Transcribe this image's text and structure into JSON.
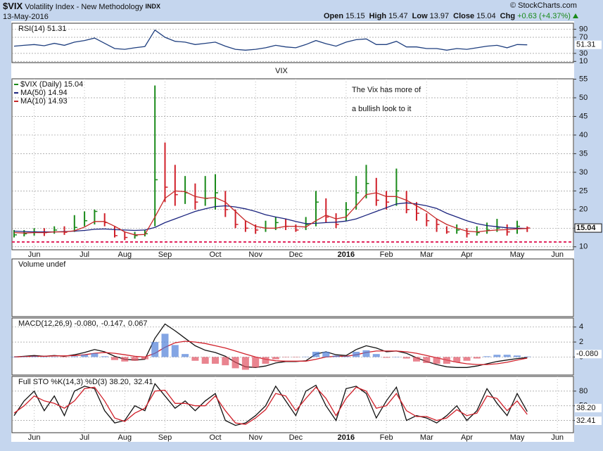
{
  "header": {
    "symbol": "$VIX",
    "name": "Volatility Index - New Methodology",
    "exchange": "INDX",
    "date": "13-May-2016",
    "quote": [
      {
        "label": "Open",
        "value": 15.15
      },
      {
        "label": "High",
        "value": 15.47
      },
      {
        "label": "Low",
        "value": 13.97
      },
      {
        "label": "Close",
        "value": 15.04
      },
      {
        "label": "Chg",
        "value": "+0.63 (+4.37%)"
      }
    ],
    "credit": "© StockCharts.com"
  },
  "chart_data": [
    {
      "type": "line",
      "legend": "inline",
      "last_value_label": true,
      "ylim": [
        7,
        105
      ],
      "yticks": [
        10,
        30,
        70,
        90
      ],
      "grid": true,
      "series": [
        {
          "name": "RSI(14) 51.31",
          "color": "#1f3f7f",
          "values": [
            48,
            50,
            52,
            49,
            55,
            50,
            58,
            62,
            68,
            55,
            42,
            40,
            44,
            47,
            88,
            70,
            60,
            58,
            52,
            55,
            58,
            48,
            40,
            38,
            40,
            44,
            50,
            46,
            44,
            52,
            62,
            54,
            48,
            58,
            64,
            66,
            52,
            52,
            60,
            46,
            46,
            42,
            42,
            38,
            42,
            40,
            44,
            48,
            50,
            44,
            52,
            51.31
          ]
        }
      ]
    },
    {
      "type": "ohlc",
      "title": "VIX",
      "title_color": "#7b1fa2",
      "annotations": [
        "The Vix has more of",
        "a bullish look to it"
      ],
      "annotation_color": "#e0205a",
      "legend": "stacked",
      "last_value_label": true,
      "ylim": [
        9.2,
        55.1
      ],
      "yticks": [
        10,
        15,
        20,
        25,
        30,
        35,
        40,
        45,
        50,
        55
      ],
      "grid": true,
      "hline": 11.3,
      "hline_color": "#e0205a",
      "categories": [
        null,
        null,
        "Jun",
        null,
        null,
        null,
        null,
        "Jul",
        null,
        null,
        null,
        "Aug",
        null,
        null,
        null,
        "Sep",
        null,
        null,
        null,
        null,
        "Oct",
        null,
        null,
        null,
        "Nov",
        null,
        null,
        null,
        "Dec",
        null,
        null,
        null,
        null,
        "2016",
        null,
        null,
        null,
        "Feb",
        null,
        null,
        null,
        "Mar",
        null,
        null,
        null,
        "Apr",
        null,
        null,
        null,
        null,
        "May",
        null,
        null,
        null,
        "Jun"
      ],
      "series": [
        {
          "name": "$VIX (Daily) 15.04",
          "color": "#1a8a1a",
          "down_color": "#d0202a",
          "values": [
            13.2,
            13.5,
            14.0,
            13.8,
            14.5,
            13.9,
            15.2,
            17.0,
            19.5,
            16.5,
            13.0,
            12.5,
            13.0,
            13.5,
            28.0,
            26.0,
            24.0,
            24.5,
            22.0,
            23.0,
            24.5,
            20.0,
            16.0,
            15.0,
            14.5,
            15.0,
            16.5,
            15.5,
            14.5,
            16.0,
            22.0,
            18.0,
            16.0,
            20.0,
            24.5,
            27.0,
            22.5,
            22.0,
            25.0,
            20.0,
            19.0,
            17.0,
            16.0,
            14.0,
            14.5,
            13.5,
            13.8,
            14.5,
            15.0,
            14.0,
            15.5,
            15.04,
            null,
            null,
            null
          ],
          "high": [
            14.5,
            14.5,
            15.0,
            15.0,
            15.5,
            15.5,
            18.5,
            19.5,
            20.0,
            19.0,
            15.5,
            14.0,
            14.0,
            14.5,
            53.3,
            38.0,
            32.0,
            29.0,
            27.0,
            29.0,
            29.5,
            25.0,
            20.0,
            17.0,
            16.0,
            17.0,
            18.0,
            17.5,
            16.0,
            18.0,
            25.0,
            23.0,
            19.0,
            22.0,
            29.0,
            32.0,
            28.5,
            25.0,
            31.0,
            25.0,
            22.0,
            19.0,
            17.5,
            15.5,
            16.0,
            15.0,
            15.5,
            16.5,
            17.5,
            16.0,
            17.0,
            15.47,
            null,
            null,
            null
          ],
          "low": [
            12.5,
            12.8,
            13.0,
            12.9,
            13.5,
            13.2,
            14.0,
            15.5,
            16.0,
            15.5,
            12.5,
            11.8,
            12.2,
            12.8,
            15.5,
            22.0,
            21.0,
            21.5,
            20.0,
            21.0,
            20.0,
            18.0,
            15.0,
            14.0,
            13.5,
            14.0,
            14.5,
            14.5,
            14.0,
            14.5,
            15.5,
            16.5,
            15.0,
            17.0,
            20.0,
            23.0,
            21.0,
            20.0,
            21.0,
            19.0,
            17.0,
            15.5,
            14.0,
            13.5,
            13.5,
            12.5,
            13.0,
            13.5,
            14.0,
            13.0,
            13.5,
            13.97,
            null,
            null,
            null
          ]
        },
        {
          "name": "MA(50) 14.94",
          "color": "#1a237e",
          "values": [
            14.2,
            14.1,
            14.0,
            14.0,
            14.0,
            14.1,
            14.2,
            14.4,
            14.7,
            14.8,
            14.6,
            14.5,
            14.4,
            14.5,
            15.2,
            16.5,
            17.5,
            18.5,
            19.5,
            20.2,
            20.8,
            21.0,
            20.7,
            20.2,
            19.5,
            18.6,
            18.0,
            17.5,
            16.8,
            16.2,
            16.3,
            16.5,
            16.6,
            16.9,
            17.5,
            18.5,
            19.5,
            20.5,
            21.5,
            21.8,
            21.5,
            21.0,
            20.3,
            19.0,
            18.0,
            17.0,
            16.2,
            15.7,
            15.4,
            15.1,
            15.0,
            14.94,
            null,
            null,
            null
          ]
        },
        {
          "name": "MA(10) 14.93",
          "color": "#c62828",
          "values": [
            13.8,
            13.7,
            13.8,
            13.8,
            14.0,
            14.0,
            14.3,
            15.3,
            16.8,
            16.8,
            15.5,
            14.0,
            13.2,
            13.3,
            18.0,
            23.0,
            25.0,
            24.8,
            23.5,
            23.0,
            23.2,
            22.0,
            19.5,
            17.0,
            15.5,
            15.0,
            15.0,
            15.5,
            15.5,
            15.3,
            17.0,
            18.5,
            17.5,
            18.0,
            21.0,
            24.0,
            24.5,
            23.5,
            23.5,
            22.5,
            21.0,
            19.5,
            17.5,
            16.0,
            15.0,
            14.2,
            14.0,
            14.3,
            14.5,
            14.6,
            14.8,
            14.93,
            null,
            null,
            null
          ]
        }
      ]
    },
    {
      "type": "volume",
      "title": "Volume undef"
    },
    {
      "type": "line",
      "legend": "inline",
      "ylim": [
        -2.4,
        5.2
      ],
      "yticks": [
        0,
        2,
        4
      ],
      "grid": true,
      "series": [
        {
          "name": "MACD(12,26,9) -0.080,",
          "color": "#111111",
          "values": [
            0,
            0.1,
            0.2,
            0.1,
            0.2,
            0.1,
            0.3,
            0.6,
            1.0,
            0.7,
            0.1,
            -0.3,
            -0.4,
            -0.3,
            2.5,
            4.4,
            3.5,
            2.5,
            1.5,
            0.9,
            0.6,
            0.1,
            -0.7,
            -1.3,
            -1.4,
            -1.2,
            -0.8,
            -0.6,
            -0.6,
            -0.5,
            0.4,
            0.7,
            0.3,
            0.2,
            1.0,
            1.5,
            1.2,
            0.7,
            0.8,
            0.5,
            -0.1,
            -0.6,
            -1.0,
            -1.3,
            -1.4,
            -1.4,
            -1.2,
            -0.9,
            -0.6,
            -0.4,
            -0.2,
            -0.08
          ],
          "value_labels": [
            null,
            null,
            null,
            null,
            null,
            null,
            null,
            null,
            null,
            null,
            null,
            null,
            null,
            null,
            null,
            null,
            null,
            null,
            null,
            null,
            null,
            null,
            null,
            null,
            null,
            null,
            null,
            null,
            null,
            null,
            null,
            null,
            null,
            null,
            null,
            null,
            null,
            null,
            null,
            null,
            null,
            null,
            null,
            null,
            null,
            null,
            null,
            null,
            null,
            null,
            null,
            "-0.080"
          ]
        },
        {
          "name": "-0.147,",
          "color": "#d0202a",
          "values": [
            0,
            0.05,
            0.1,
            0.1,
            0.15,
            0.15,
            0.2,
            0.3,
            0.5,
            0.6,
            0.5,
            0.3,
            0.1,
            0,
            0.5,
            1.3,
            1.9,
            2.1,
            2.0,
            1.8,
            1.5,
            1.2,
            0.8,
            0.4,
            0.0,
            -0.3,
            -0.5,
            -0.55,
            -0.55,
            -0.55,
            -0.3,
            0.0,
            0.1,
            0.1,
            0.3,
            0.6,
            0.8,
            0.8,
            0.8,
            0.7,
            0.5,
            0.2,
            -0.1,
            -0.4,
            -0.7,
            -0.9,
            -1.0,
            -1.0,
            -0.9,
            -0.7,
            -0.4,
            -0.147
          ]
        },
        {
          "name": "0.067",
          "color": "#4f7fd8",
          "down_color": "#e05060",
          "style": "histogram",
          "values": [
            0,
            0.05,
            0.1,
            0,
            0.05,
            -0.05,
            0.1,
            0.3,
            0.5,
            0.1,
            -0.4,
            -0.6,
            -0.5,
            -0.3,
            2.0,
            3.1,
            1.6,
            0.4,
            -0.5,
            -0.9,
            -0.9,
            -1.1,
            -1.5,
            -1.7,
            -1.4,
            -0.9,
            -0.3,
            -0.05,
            -0.05,
            0.05,
            0.7,
            0.7,
            0.2,
            0.1,
            0.7,
            0.9,
            0.4,
            -0.1,
            0,
            -0.2,
            -0.6,
            -0.8,
            -0.9,
            -0.9,
            -0.7,
            -0.5,
            -0.2,
            0.1,
            0.3,
            0.3,
            0.2,
            0.067
          ]
        }
      ]
    },
    {
      "type": "line",
      "legend": "inline",
      "ylim": [
        -5,
        110
      ],
      "yticks": [
        20,
        50,
        80
      ],
      "grid": true,
      "categories": [
        null,
        null,
        "Jun",
        null,
        null,
        null,
        null,
        "Jul",
        null,
        null,
        null,
        "Aug",
        null,
        null,
        null,
        "Sep",
        null,
        null,
        null,
        null,
        "Oct",
        null,
        null,
        null,
        "Nov",
        null,
        null,
        null,
        "Dec",
        null,
        null,
        null,
        null,
        "2016",
        null,
        null,
        null,
        "Feb",
        null,
        null,
        null,
        "Mar",
        null,
        null,
        null,
        "Apr",
        null,
        null,
        null,
        null,
        "May",
        null,
        null,
        null,
        "Jun"
      ],
      "series": [
        {
          "name": "Full STO %K(14,3) %D(3) 38.20,",
          "color": "#111111",
          "values": [
            30,
            60,
            80,
            40,
            70,
            30,
            80,
            90,
            85,
            40,
            15,
            20,
            50,
            40,
            95,
            70,
            45,
            60,
            40,
            60,
            75,
            20,
            10,
            15,
            30,
            50,
            90,
            60,
            30,
            80,
            92,
            50,
            20,
            85,
            90,
            75,
            25,
            60,
            88,
            20,
            30,
            25,
            15,
            30,
            50,
            20,
            40,
            85,
            55,
            30,
            75,
            38.2,
            null,
            null,
            null
          ],
          "value_labels": [
            null,
            null,
            null,
            null,
            null,
            null,
            null,
            null,
            null,
            null,
            null,
            null,
            null,
            null,
            null,
            null,
            null,
            null,
            null,
            null,
            null,
            null,
            null,
            null,
            null,
            null,
            null,
            null,
            null,
            null,
            null,
            null,
            null,
            null,
            null,
            null,
            null,
            null,
            null,
            null,
            null,
            null,
            null,
            null,
            null,
            null,
            null,
            null,
            null,
            null,
            null,
            "38.20",
            null,
            null,
            null
          ]
        },
        {
          "name": "32.41",
          "color": "#d0202a",
          "values": [
            35,
            50,
            70,
            60,
            55,
            45,
            60,
            85,
            88,
            60,
            25,
            18,
            35,
            45,
            80,
            82,
            55,
            55,
            50,
            50,
            70,
            40,
            15,
            12,
            25,
            42,
            75,
            70,
            40,
            65,
            88,
            65,
            30,
            65,
            88,
            80,
            45,
            50,
            75,
            40,
            28,
            28,
            20,
            25,
            42,
            30,
            35,
            70,
            65,
            40,
            60,
            32.41,
            null,
            null,
            null
          ],
          "value_labels": [
            null,
            null,
            null,
            null,
            null,
            null,
            null,
            null,
            null,
            null,
            null,
            null,
            null,
            null,
            null,
            null,
            null,
            null,
            null,
            null,
            null,
            null,
            null,
            null,
            null,
            null,
            null,
            null,
            null,
            null,
            null,
            null,
            null,
            null,
            null,
            null,
            null,
            null,
            null,
            null,
            null,
            null,
            null,
            null,
            null,
            null,
            null,
            null,
            null,
            null,
            null,
            "32.41",
            null,
            null,
            null
          ]
        }
      ]
    }
  ]
}
